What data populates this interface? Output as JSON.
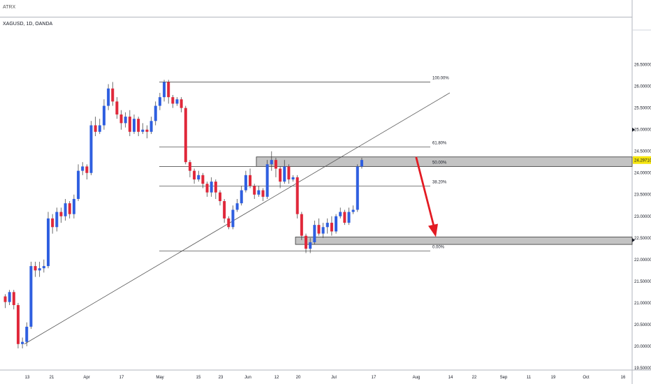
{
  "header": {
    "indicator_label": "ATRX",
    "symbol_title": "XAGUSD, 1D, OANDA"
  },
  "colors": {
    "bull": "#2f5fe0",
    "bear": "#e0283a",
    "zone_fill": "#b9b9b9",
    "trendline": "#555555",
    "fib_line": "#555555",
    "arrow": "#e31b23",
    "price_badge": "#f5e50f"
  },
  "chart_data": {
    "type": "candlestick",
    "symbol": "XAGUSD",
    "timeframe": "1D",
    "source": "OANDA",
    "ylim": [
      19.45,
      27.3
    ],
    "y_ticks": [
      "19.50000",
      "20.00000",
      "20.50000",
      "21.00000",
      "21.50000",
      "22.00000",
      "22.50000",
      "23.00000",
      "23.50000",
      "24.00000",
      "24.50000",
      "25.00000",
      "25.50000",
      "26.00000",
      "26.50000"
    ],
    "x_ticks": [
      "13",
      "21",
      "Apr",
      "17",
      "May",
      "15",
      "23",
      "Jun",
      "12",
      "20",
      "Jul",
      "17",
      "Aug",
      "14",
      "22",
      "Sep",
      "11",
      "19",
      "Oct",
      "16"
    ],
    "last_price": "24.29710",
    "candles": [
      [
        21.15,
        21.02,
        21.2,
        20.88
      ],
      [
        21.02,
        21.25,
        21.3,
        20.95
      ],
      [
        21.25,
        20.95,
        21.3,
        20.85
      ],
      [
        20.95,
        20.05,
        21.0,
        19.95
      ],
      [
        20.05,
        20.1,
        20.2,
        19.95
      ],
      [
        20.1,
        20.45,
        20.55,
        20.0
      ],
      [
        20.45,
        21.85,
        21.95,
        20.4
      ],
      [
        21.85,
        21.75,
        21.95,
        21.6
      ],
      [
        21.75,
        21.8,
        21.95,
        21.6
      ],
      [
        21.8,
        21.85,
        22.0,
        21.7
      ],
      [
        21.85,
        22.95,
        23.1,
        21.8
      ],
      [
        22.95,
        22.75,
        23.05,
        22.6
      ],
      [
        22.75,
        23.1,
        23.2,
        22.65
      ],
      [
        23.1,
        23.0,
        23.2,
        22.85
      ],
      [
        23.0,
        23.3,
        23.4,
        22.9
      ],
      [
        23.3,
        23.05,
        23.35,
        22.95
      ],
      [
        23.05,
        23.4,
        23.5,
        22.95
      ],
      [
        23.4,
        24.05,
        24.2,
        23.35
      ],
      [
        24.05,
        24.15,
        24.25,
        23.95
      ],
      [
        24.15,
        24.0,
        24.2,
        23.85
      ],
      [
        24.0,
        25.1,
        25.2,
        23.95
      ],
      [
        25.1,
        24.95,
        25.3,
        24.85
      ],
      [
        24.95,
        25.1,
        25.25,
        24.9
      ],
      [
        25.1,
        25.55,
        25.7,
        25.0
      ],
      [
        25.55,
        25.95,
        26.05,
        25.45
      ],
      [
        25.95,
        25.65,
        26.1,
        25.55
      ],
      [
        25.65,
        25.35,
        25.75,
        25.25
      ],
      [
        25.35,
        25.15,
        25.45,
        25.0
      ],
      [
        25.15,
        25.3,
        25.4,
        25.05
      ],
      [
        25.3,
        24.95,
        25.45,
        24.85
      ],
      [
        24.95,
        25.25,
        25.35,
        24.9
      ],
      [
        25.25,
        24.95,
        25.3,
        24.85
      ],
      [
        24.95,
        25.0,
        25.15,
        24.9
      ],
      [
        25.0,
        24.95,
        25.1,
        24.8
      ],
      [
        24.95,
        25.2,
        25.3,
        24.9
      ],
      [
        25.2,
        25.55,
        25.65,
        25.1
      ],
      [
        25.55,
        25.75,
        25.85,
        25.45
      ],
      [
        25.75,
        26.1,
        26.15,
        25.65
      ],
      [
        26.1,
        25.75,
        26.15,
        25.6
      ],
      [
        25.75,
        25.6,
        25.8,
        25.5
      ],
      [
        25.6,
        25.7,
        25.75,
        25.55
      ],
      [
        25.7,
        25.5,
        25.75,
        25.4
      ],
      [
        25.5,
        24.25,
        25.55,
        24.2
      ],
      [
        24.25,
        24.05,
        24.3,
        23.9
      ],
      [
        24.05,
        23.85,
        24.1,
        23.75
      ],
      [
        23.85,
        23.95,
        24.05,
        23.8
      ],
      [
        23.95,
        23.75,
        24.0,
        23.65
      ],
      [
        23.75,
        23.55,
        23.8,
        23.45
      ],
      [
        23.55,
        23.8,
        23.9,
        23.45
      ],
      [
        23.8,
        23.55,
        23.85,
        23.4
      ],
      [
        23.55,
        23.35,
        23.6,
        23.25
      ],
      [
        23.35,
        22.95,
        23.4,
        22.85
      ],
      [
        22.95,
        22.75,
        23.0,
        22.7
      ],
      [
        22.75,
        23.15,
        23.25,
        22.7
      ],
      [
        23.15,
        23.3,
        23.4,
        23.1
      ],
      [
        23.3,
        23.6,
        23.7,
        23.25
      ],
      [
        23.6,
        23.95,
        24.05,
        23.55
      ],
      [
        23.95,
        23.7,
        24.1,
        23.65
      ],
      [
        23.7,
        23.5,
        23.75,
        23.4
      ],
      [
        23.5,
        23.6,
        23.7,
        23.45
      ],
      [
        23.6,
        23.45,
        23.65,
        23.35
      ],
      [
        23.45,
        24.2,
        24.3,
        23.4
      ],
      [
        24.2,
        24.3,
        24.5,
        24.05
      ],
      [
        24.3,
        24.1,
        24.35,
        23.9
      ],
      [
        24.1,
        23.8,
        24.15,
        23.65
      ],
      [
        23.8,
        24.15,
        24.3,
        23.75
      ],
      [
        24.15,
        23.85,
        24.2,
        23.75
      ],
      [
        23.85,
        23.9,
        23.95,
        23.8
      ],
      [
        23.9,
        23.05,
        23.95,
        22.95
      ],
      [
        23.05,
        22.55,
        23.1,
        22.45
      ],
      [
        22.55,
        22.25,
        22.6,
        22.15
      ],
      [
        22.25,
        22.4,
        22.5,
        22.15
      ],
      [
        22.4,
        22.8,
        22.9,
        22.35
      ],
      [
        22.8,
        22.6,
        22.95,
        22.55
      ],
      [
        22.6,
        22.75,
        22.85,
        22.5
      ],
      [
        22.75,
        22.85,
        22.95,
        22.6
      ],
      [
        22.85,
        22.65,
        23.0,
        22.55
      ],
      [
        22.65,
        23.0,
        23.05,
        22.6
      ],
      [
        23.0,
        23.1,
        23.2,
        22.95
      ],
      [
        23.1,
        22.85,
        23.15,
        22.8
      ],
      [
        22.85,
        23.1,
        23.2,
        22.8
      ],
      [
        23.1,
        23.15,
        23.25,
        23.05
      ],
      [
        23.15,
        24.15,
        24.2,
        23.1
      ],
      [
        24.15,
        24.3,
        24.35,
        24.1
      ]
    ],
    "fib_levels": [
      {
        "label": "100.00%",
        "price": 26.1
      },
      {
        "label": "61.80%",
        "price": 24.6
      },
      {
        "label": "50.00%",
        "price": 24.15
      },
      {
        "label": "38.20%",
        "price": 23.7
      },
      {
        "label": "0.00%",
        "price": 22.2
      }
    ],
    "zones": [
      {
        "name": "resistance",
        "from": 24.15,
        "to": 24.37
      },
      {
        "name": "support",
        "from": 22.35,
        "to": 22.52
      }
    ],
    "trendline": {
      "from_price": 20.05,
      "to_price": 25.85
    },
    "projection_arrow": {
      "from_price": 24.35,
      "to_price": 22.52
    }
  }
}
